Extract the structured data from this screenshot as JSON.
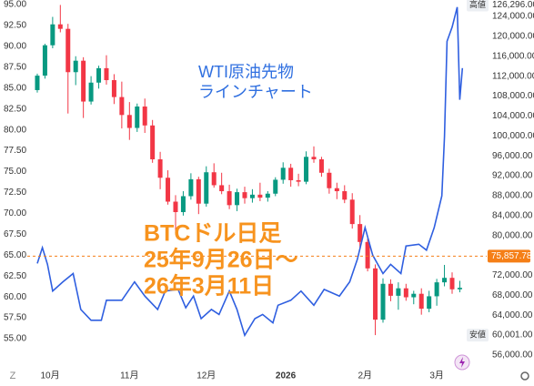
{
  "chart_data": {
    "type": "candlestick",
    "watermark": "Z",
    "annotations": {
      "wti": [
        "WTI原油先物",
        "ラインチャート"
      ],
      "btc": [
        "BTCドル日足",
        "25年9月26日～",
        "26年3月11日"
      ]
    },
    "xlim": [
      -3.9,
      175.5
    ],
    "xticks": [
      {
        "value": 5,
        "label": "10月"
      },
      {
        "value": 36,
        "label": "11月"
      },
      {
        "value": 66,
        "label": "12月"
      },
      {
        "value": 97,
        "label": "2026"
      },
      {
        "value": 128,
        "label": "2月"
      },
      {
        "value": 156,
        "label": "3月"
      }
    ],
    "ylim": [
      51.95,
      95.55
    ],
    "yticks": [
      {
        "value": 95,
        "label": "95.00"
      },
      {
        "value": 92.5,
        "label": "92.50"
      },
      {
        "value": 90,
        "label": "90.00"
      },
      {
        "value": 87.5,
        "label": "87.50"
      },
      {
        "value": 85,
        "label": "85.00"
      },
      {
        "value": 82.5,
        "label": "82.50"
      },
      {
        "value": 80,
        "label": "80.00"
      },
      {
        "value": 77.5,
        "label": "77.50"
      },
      {
        "value": 75,
        "label": "75.00"
      },
      {
        "value": 72.5,
        "label": "72.50"
      },
      {
        "value": 70,
        "label": "70.00"
      },
      {
        "value": 67.5,
        "label": "67.50"
      },
      {
        "value": 65,
        "label": "65.00"
      },
      {
        "value": 62.5,
        "label": "62.50"
      },
      {
        "value": 60,
        "label": "60.00"
      },
      {
        "value": 57.5,
        "label": "57.50"
      },
      {
        "value": 55,
        "label": "55.00"
      }
    ],
    "y2lim": [
      54170,
      127290
    ],
    "y2ticks": [
      {
        "value": 124000,
        "label": "124,000.00"
      },
      {
        "value": 120000,
        "label": "120,000.00"
      },
      {
        "value": 116000,
        "label": "116,000.00"
      },
      {
        "value": 112000,
        "label": "112,000.00"
      },
      {
        "value": 108000,
        "label": "108,000.00"
      },
      {
        "value": 104000,
        "label": "104,000.00"
      },
      {
        "value": 100000,
        "label": "100,000.00"
      },
      {
        "value": 96000,
        "label": "96,000.00"
      },
      {
        "value": 92000,
        "label": "92,000.00"
      },
      {
        "value": 88000,
        "label": "88,000.00"
      },
      {
        "value": 84000,
        "label": "84,000.00"
      },
      {
        "value": 80000,
        "label": "80,000.00"
      },
      {
        "value": 72000,
        "label": "72,000.00"
      },
      {
        "value": 68000,
        "label": "68,000.00"
      },
      {
        "value": 64000,
        "label": "64,000.00"
      },
      {
        "value": 56000,
        "label": "56,000.00"
      }
    ],
    "grid": false,
    "high_marker": {
      "tag": "高値",
      "value": 126296,
      "label": "126,296.00"
    },
    "low_marker": {
      "tag": "安値",
      "value": 60001,
      "label": "60,001.00"
    },
    "price_line": {
      "value": 75857.78,
      "label": "75,857.78",
      "color": "#f57f17"
    },
    "candles": {
      "axis": "y2",
      "up_color": "#089981",
      "down_color": "#f23645",
      "x": [
        0,
        3,
        6,
        9,
        12,
        15,
        18,
        21,
        24,
        27,
        30,
        33,
        36,
        39,
        42,
        45,
        48,
        51,
        54,
        57,
        60,
        63,
        66,
        69,
        72,
        75,
        78,
        81,
        84,
        87,
        90,
        93,
        96,
        99,
        102,
        105,
        108,
        111,
        114,
        117,
        120,
        123,
        126,
        129,
        132,
        135,
        138,
        141,
        144,
        147,
        150,
        153,
        156,
        159,
        162,
        165
      ],
      "open": [
        109200,
        112100,
        118200,
        122400,
        121500,
        112800,
        115100,
        106900,
        110700,
        113600,
        111200,
        107800,
        104200,
        101600,
        105900,
        102100,
        95300,
        91600,
        86800,
        84700,
        87900,
        91300,
        86400,
        92700,
        90100,
        88900,
        86100,
        88700,
        87500,
        88200,
        87600,
        88400,
        91200,
        93600,
        91100,
        90800,
        95800,
        95300,
        92600,
        89500,
        88900,
        87200,
        82300,
        78700,
        73400,
        63100,
        70300,
        67900,
        69400,
        67600,
        68300,
        65300,
        67800,
        70600,
        71500,
        69200
      ],
      "high": [
        112500,
        118500,
        123900,
        126296,
        122500,
        116000,
        115800,
        112000,
        114100,
        116200,
        112400,
        110900,
        106800,
        106500,
        107500,
        103200,
        96800,
        93100,
        88100,
        88900,
        92500,
        91800,
        93900,
        94500,
        92600,
        90200,
        89400,
        89800,
        89300,
        90600,
        88900,
        91700,
        94700,
        94400,
        92400,
        96900,
        97900,
        95800,
        93400,
        90600,
        90100,
        88500,
        84100,
        79400,
        74200,
        71400,
        71200,
        70600,
        70300,
        68900,
        69400,
        68900,
        71300,
        74100,
        72600,
        70900
      ],
      "low": [
        108700,
        111500,
        117600,
        120800,
        104500,
        110200,
        103600,
        106300,
        109500,
        110300,
        106400,
        101500,
        99200,
        100800,
        100600,
        94600,
        89300,
        86200,
        80600,
        84000,
        87200,
        84300,
        85800,
        89600,
        88300,
        85300,
        84900,
        86400,
        86600,
        86900,
        86800,
        87900,
        90400,
        89800,
        89900,
        90300,
        94600,
        91800,
        88400,
        87300,
        86500,
        81400,
        77600,
        72800,
        60001,
        62500,
        66800,
        65100,
        66900,
        66200,
        64100,
        64600,
        65900,
        69800,
        68300,
        68600
      ],
      "close": [
        112100,
        118200,
        122400,
        121500,
        112800,
        115100,
        106900,
        110700,
        113600,
        111200,
        107800,
        104200,
        101600,
        105900,
        102100,
        95300,
        91600,
        86800,
        84700,
        87900,
        91300,
        86400,
        92700,
        90100,
        88900,
        86100,
        88700,
        87500,
        88200,
        87600,
        88400,
        91200,
        93600,
        91100,
        90800,
        95800,
        95300,
        92600,
        89500,
        88900,
        87200,
        82300,
        78700,
        73400,
        63100,
        70300,
        67900,
        69400,
        67600,
        68300,
        65300,
        67800,
        70600,
        71500,
        69200,
        69500
      ]
    },
    "line": {
      "color": "#2f5fe0",
      "x": [
        0,
        2,
        4,
        6,
        10,
        14,
        17,
        21,
        25,
        27,
        30,
        33,
        38,
        42,
        47,
        50,
        55,
        58,
        61,
        64,
        68,
        71,
        75,
        78,
        81,
        85,
        88,
        92,
        94,
        99,
        103,
        108,
        112,
        118,
        122,
        125,
        128,
        131,
        135,
        138,
        142,
        144,
        149,
        152,
        155,
        158,
        159,
        160,
        162,
        164,
        165,
        166
      ],
      "values": [
        64.0,
        65.9,
        63.9,
        60.7,
        61.8,
        62.8,
        58.5,
        57.2,
        57.2,
        59.6,
        59.6,
        59.6,
        61.8,
        60.1,
        58.5,
        60.7,
        60.9,
        58.7,
        60.1,
        57.4,
        58.5,
        57.9,
        60.7,
        58.5,
        55.4,
        57.4,
        57.9,
        56.9,
        59.0,
        59.6,
        60.7,
        59.0,
        60.9,
        60.1,
        61.8,
        64.5,
        68.3,
        65.0,
        62.8,
        63.9,
        62.8,
        66.1,
        66.3,
        65.6,
        68.3,
        72.1,
        79.2,
        90.6,
        92.3,
        94.7,
        83.6,
        87.4
      ]
    }
  }
}
